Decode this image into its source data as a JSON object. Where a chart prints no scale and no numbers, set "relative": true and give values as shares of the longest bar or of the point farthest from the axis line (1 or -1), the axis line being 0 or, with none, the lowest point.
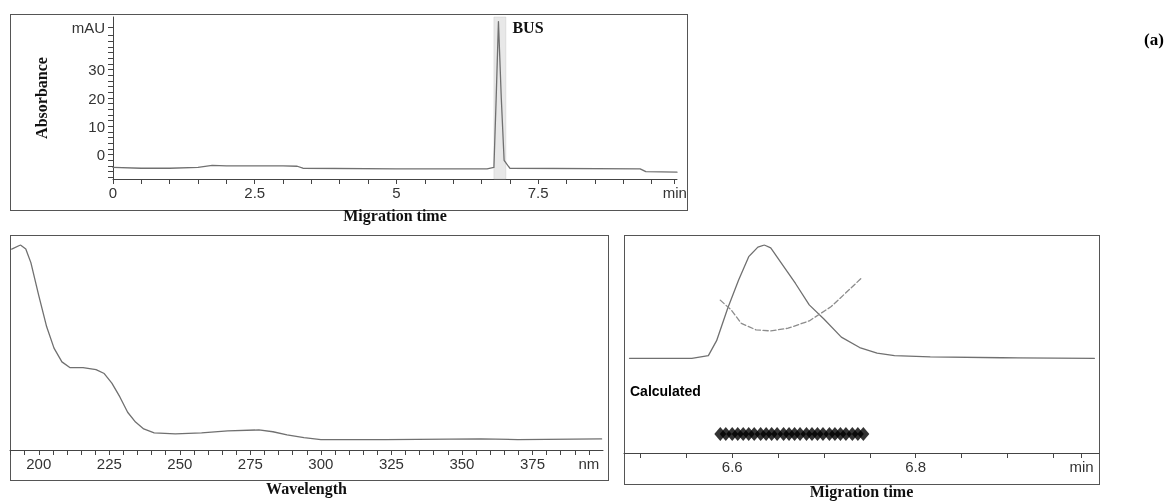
{
  "chart_data": [
    {
      "type": "line",
      "xlabel": "Migration time",
      "ylabel": "Absorbance",
      "marker": "none",
      "xlim": [
        0,
        9.95
      ],
      "xticks": [
        0,
        {
          "value": 0.5,
          "label": null
        },
        {
          "value": 1,
          "label": null
        },
        {
          "value": 1.5,
          "label": null
        },
        {
          "value": 2,
          "label": null
        },
        2.5,
        {
          "value": 3,
          "label": null
        },
        {
          "value": 3.5,
          "label": null
        },
        {
          "value": 4,
          "label": null
        },
        {
          "value": 4.5,
          "label": null
        },
        5,
        {
          "value": 5.5,
          "label": null
        },
        {
          "value": 6,
          "label": null
        },
        {
          "value": 6.5,
          "label": null
        },
        {
          "value": 7,
          "label": null
        },
        7.5,
        {
          "value": 8,
          "label": null
        },
        {
          "value": 8.5,
          "label": null
        },
        {
          "value": 9,
          "label": null
        },
        {
          "value": 9.5,
          "label": null
        },
        {
          "value": 9.91,
          "label": "min"
        }
      ],
      "ylim": [
        -8.6,
        48.6
      ],
      "yticks": [
        {
          "value": -8,
          "label": null
        },
        {
          "value": -6,
          "label": null
        },
        {
          "value": -4,
          "label": null
        },
        {
          "value": -2,
          "label": null
        },
        0,
        {
          "value": 2,
          "label": null
        },
        {
          "value": 4,
          "label": null
        },
        {
          "value": 6,
          "label": null
        },
        {
          "value": 8,
          "label": null
        },
        10,
        {
          "value": 12,
          "label": null
        },
        {
          "value": 14,
          "label": null
        },
        {
          "value": 16,
          "label": null
        },
        {
          "value": 18,
          "label": null
        },
        20,
        {
          "value": 22,
          "label": null
        },
        {
          "value": 24,
          "label": null
        },
        {
          "value": 26,
          "label": null
        },
        {
          "value": 28,
          "label": null
        },
        30,
        {
          "value": 32,
          "label": null
        },
        {
          "value": 34,
          "label": null
        },
        {
          "value": 36,
          "label": null
        },
        {
          "value": 38,
          "label": null
        },
        {
          "value": 40,
          "label": null
        },
        {
          "value": 42,
          "label": null
        },
        {
          "value": 45,
          "label": "mAU"
        }
      ],
      "series": [
        {
          "color": "#707070",
          "x": [
            0,
            0.5,
            1.0,
            1.5,
            1.75,
            2,
            3,
            3.25,
            3.35,
            5,
            6.6,
            6.72,
            6.76,
            6.8,
            6.85,
            6.9,
            7.0,
            9.3,
            9.4,
            9.95
          ],
          "values": [
            -4.5,
            -4.8,
            -4.8,
            -4.5,
            -3.8,
            -4.0,
            -4.0,
            -4.1,
            -4.8,
            -5,
            -5,
            -4.5,
            20,
            47,
            20,
            -2,
            -4.8,
            -5,
            -6,
            -6.2
          ]
        }
      ],
      "bands": [
        {
          "axis": "x",
          "from": 6.72,
          "to": 6.93,
          "color": "#bdbdbd"
        }
      ],
      "annotations": [
        {
          "text": "BUS",
          "x": 6.8,
          "y": 47
        },
        "(a)"
      ]
    },
    {
      "type": "line",
      "xlabel": "Wavelength",
      "relative": true,
      "marker": "none",
      "tick_labels": "x",
      "xlim": [
        189.8,
        400
      ],
      "xticks": [
        {
          "value": 190,
          "label": null
        },
        {
          "value": 195,
          "label": null
        },
        200,
        {
          "value": 205,
          "label": null
        },
        {
          "value": 210,
          "label": null
        },
        {
          "value": 215,
          "label": null
        },
        {
          "value": 220,
          "label": null
        },
        225,
        {
          "value": 230,
          "label": null
        },
        {
          "value": 235,
          "label": null
        },
        {
          "value": 240,
          "label": null
        },
        {
          "value": 245,
          "label": null
        },
        250,
        {
          "value": 255,
          "label": null
        },
        {
          "value": 260,
          "label": null
        },
        {
          "value": 265,
          "label": null
        },
        {
          "value": 270,
          "label": null
        },
        275,
        {
          "value": 280,
          "label": null
        },
        {
          "value": 285,
          "label": null
        },
        {
          "value": 290,
          "label": null
        },
        {
          "value": 295,
          "label": null
        },
        300,
        {
          "value": 305,
          "label": null
        },
        {
          "value": 310,
          "label": null
        },
        {
          "value": 315,
          "label": null
        },
        {
          "value": 320,
          "label": null
        },
        325,
        {
          "value": 330,
          "label": null
        },
        {
          "value": 335,
          "label": null
        },
        {
          "value": 340,
          "label": null
        },
        {
          "value": 345,
          "label": null
        },
        350,
        {
          "value": 355,
          "label": null
        },
        {
          "value": 360,
          "label": null
        },
        {
          "value": 365,
          "label": null
        },
        {
          "value": 370,
          "label": null
        },
        375,
        {
          "value": 380,
          "label": null
        },
        {
          "value": 385,
          "label": null
        },
        {
          "value": 390,
          "label": null
        },
        {
          "value": 395,
          "label": "nm"
        }
      ],
      "series": [
        {
          "color": "#707070",
          "x": [
            190.4,
            193.5,
            195.4,
            197.2,
            200.0,
            202.8,
            205.4,
            208.2,
            211.0,
            215.7,
            220.3,
            223.2,
            225.9,
            228.7,
            231.5,
            234.3,
            237.2,
            240.9,
            248.4,
            257.7,
            267.0,
            278.0,
            283.0,
            288.0,
            294.0,
            300.0,
            323.0,
            356.7,
            369.8,
            399.5
          ],
          "values": [
            0.98,
            1.0,
            0.98,
            0.914,
            0.753,
            0.601,
            0.497,
            0.43,
            0.402,
            0.402,
            0.392,
            0.373,
            0.326,
            0.26,
            0.184,
            0.136,
            0.103,
            0.084,
            0.079,
            0.084,
            0.093,
            0.098,
            0.089,
            0.074,
            0.06,
            0.051,
            0.051,
            0.054,
            0.051,
            0.054
          ]
        }
      ]
    },
    {
      "type": "line",
      "xlabel": "Migration time",
      "relative": true,
      "marker": "none",
      "tick_labels": "x",
      "xlim": [
        6.482,
        7.0
      ],
      "xticks": [
        {
          "value": 6.5,
          "label": null
        },
        {
          "value": 6.55,
          "label": null
        },
        6.6,
        {
          "value": 6.65,
          "label": null
        },
        {
          "value": 6.7,
          "label": null
        },
        {
          "value": 6.75,
          "label": null
        },
        6.8,
        {
          "value": 6.85,
          "label": null
        },
        {
          "value": 6.9,
          "label": null
        },
        {
          "value": 6.95,
          "label": null
        },
        {
          "value": 6.981,
          "label": "min"
        }
      ],
      "series": [
        {
          "color": "#707070",
          "x": [
            6.488,
            6.556,
            6.574,
            6.583,
            6.595,
            6.607,
            6.618,
            6.628,
            6.635,
            6.642,
            6.653,
            6.669,
            6.684,
            6.7,
            6.719,
            6.739,
            6.758,
            6.777,
            6.816,
            6.894,
            6.995
          ],
          "values": [
            0.455,
            0.455,
            0.468,
            0.54,
            0.695,
            0.832,
            0.944,
            0.99,
            1.0,
            0.986,
            0.917,
            0.815,
            0.712,
            0.644,
            0.557,
            0.507,
            0.48,
            0.468,
            0.462,
            0.458,
            0.455
          ]
        },
        {
          "color": "#8c8c8c",
          "line_style": "dashed",
          "x": [
            6.587,
            6.599,
            6.61,
            6.626,
            6.642,
            6.661,
            6.684,
            6.708,
            6.741
          ],
          "values": [
            0.735,
            0.687,
            0.623,
            0.592,
            0.587,
            0.6,
            0.635,
            0.704,
            0.841
          ]
        },
        {
          "type": "scatter",
          "marker": "diamond",
          "color": "#000000",
          "x": [
            6.587,
            6.593,
            6.6,
            6.606,
            6.612,
            6.618,
            6.624,
            6.631,
            6.637,
            6.643,
            6.649,
            6.656,
            6.662,
            6.668,
            6.674,
            6.681,
            6.687,
            6.693,
            6.699,
            6.706,
            6.712,
            6.718,
            6.724,
            6.731,
            6.737,
            6.743
          ],
          "values": [
            0.091,
            0.091,
            0.091,
            0.091,
            0.091,
            0.091,
            0.091,
            0.091,
            0.091,
            0.091,
            0.091,
            0.091,
            0.091,
            0.091,
            0.091,
            0.091,
            0.091,
            0.091,
            0.091,
            0.091,
            0.091,
            0.091,
            0.091,
            0.091,
            0.091,
            0.091
          ]
        }
      ],
      "annotations": [
        "Calculated"
      ]
    }
  ]
}
